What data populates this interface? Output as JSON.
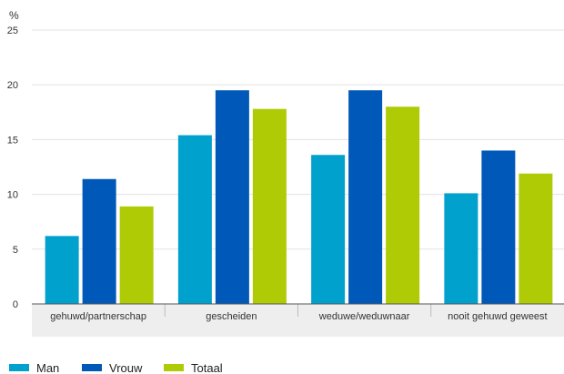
{
  "chart_data": {
    "type": "bar",
    "unit_label": "%",
    "categories": [
      "gehuwd/partnerschap",
      "gescheiden",
      "weduwe/weduwnaar",
      "nooit gehuwd geweest"
    ],
    "series": [
      {
        "name": "Man",
        "color": "#00a1cd",
        "values": [
          6.2,
          15.4,
          13.6,
          10.1
        ]
      },
      {
        "name": "Vrouw",
        "color": "#0058b8",
        "values": [
          11.4,
          19.5,
          19.5,
          14.0
        ]
      },
      {
        "name": "Totaal",
        "color": "#afcb05",
        "values": [
          8.9,
          17.8,
          18.0,
          11.9
        ]
      }
    ],
    "ylim": [
      0,
      25
    ],
    "yticks": [
      0,
      5,
      10,
      15,
      20,
      25
    ],
    "grid": true,
    "legend_position": "bottom-left"
  }
}
